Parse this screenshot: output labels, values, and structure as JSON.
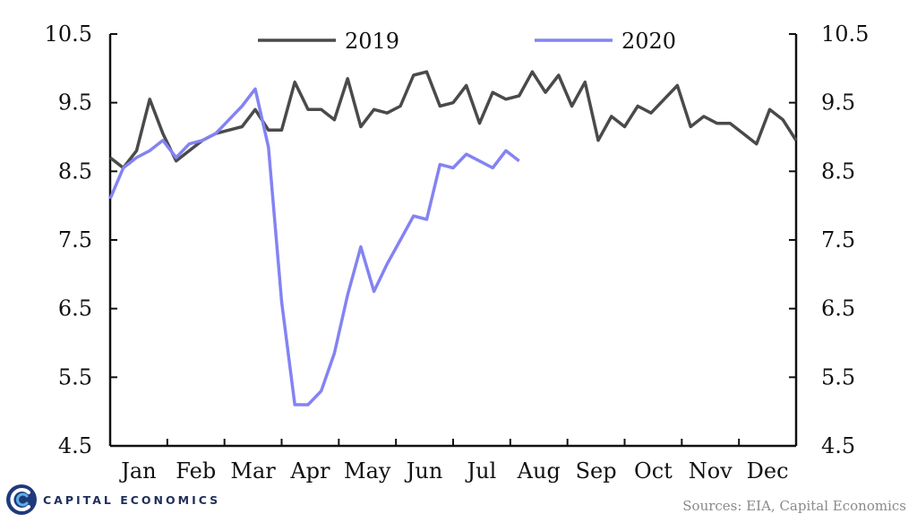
{
  "chart_data": {
    "type": "line",
    "x_tick_labels": [
      "Jan",
      "Feb",
      "Mar",
      "Apr",
      "May",
      "Jun",
      "Jul",
      "Aug",
      "Sep",
      "Oct",
      "Nov",
      "Dec"
    ],
    "ylim": [
      4.5,
      10.5
    ],
    "y_ticks": [
      "4.5",
      "5.5",
      "6.5",
      "7.5",
      "8.5",
      "9.5",
      "10.5"
    ],
    "y2_ticks": [
      "4.5",
      "5.5",
      "6.5",
      "7.5",
      "8.5",
      "9.5",
      "10.5"
    ],
    "legend_position": "top",
    "series": [
      {
        "name": "2019",
        "color": "#4a4a4a",
        "values": [
          8.7,
          8.55,
          8.8,
          9.55,
          9.05,
          8.65,
          8.8,
          8.95,
          9.05,
          9.1,
          9.15,
          9.4,
          9.1,
          9.1,
          9.8,
          9.4,
          9.4,
          9.25,
          9.85,
          9.15,
          9.4,
          9.35,
          9.45,
          9.9,
          9.95,
          9.45,
          9.5,
          9.75,
          9.2,
          9.65,
          9.55,
          9.6,
          9.95,
          9.65,
          9.9,
          9.45,
          9.8,
          8.95,
          9.3,
          9.15,
          9.45,
          9.35,
          9.55,
          9.75,
          9.15,
          9.3,
          9.2,
          9.2,
          9.05,
          8.9,
          9.4,
          9.25,
          8.95
        ]
      },
      {
        "name": "2020",
        "color": "#8383f3",
        "values": [
          8.1,
          8.55,
          8.7,
          8.8,
          8.95,
          8.7,
          8.9,
          8.95,
          9.05,
          9.25,
          9.45,
          9.7,
          8.85,
          6.6,
          5.1,
          5.1,
          5.3,
          5.85,
          6.7,
          7.4,
          6.75,
          7.15,
          7.5,
          7.85,
          7.8,
          8.6,
          8.55,
          8.75,
          8.65,
          8.55,
          8.8,
          8.65
        ]
      }
    ]
  },
  "footer": {
    "brand_name": "CAPITAL ECONOMICS",
    "source": "Sources: EIA, Capital Economics"
  }
}
